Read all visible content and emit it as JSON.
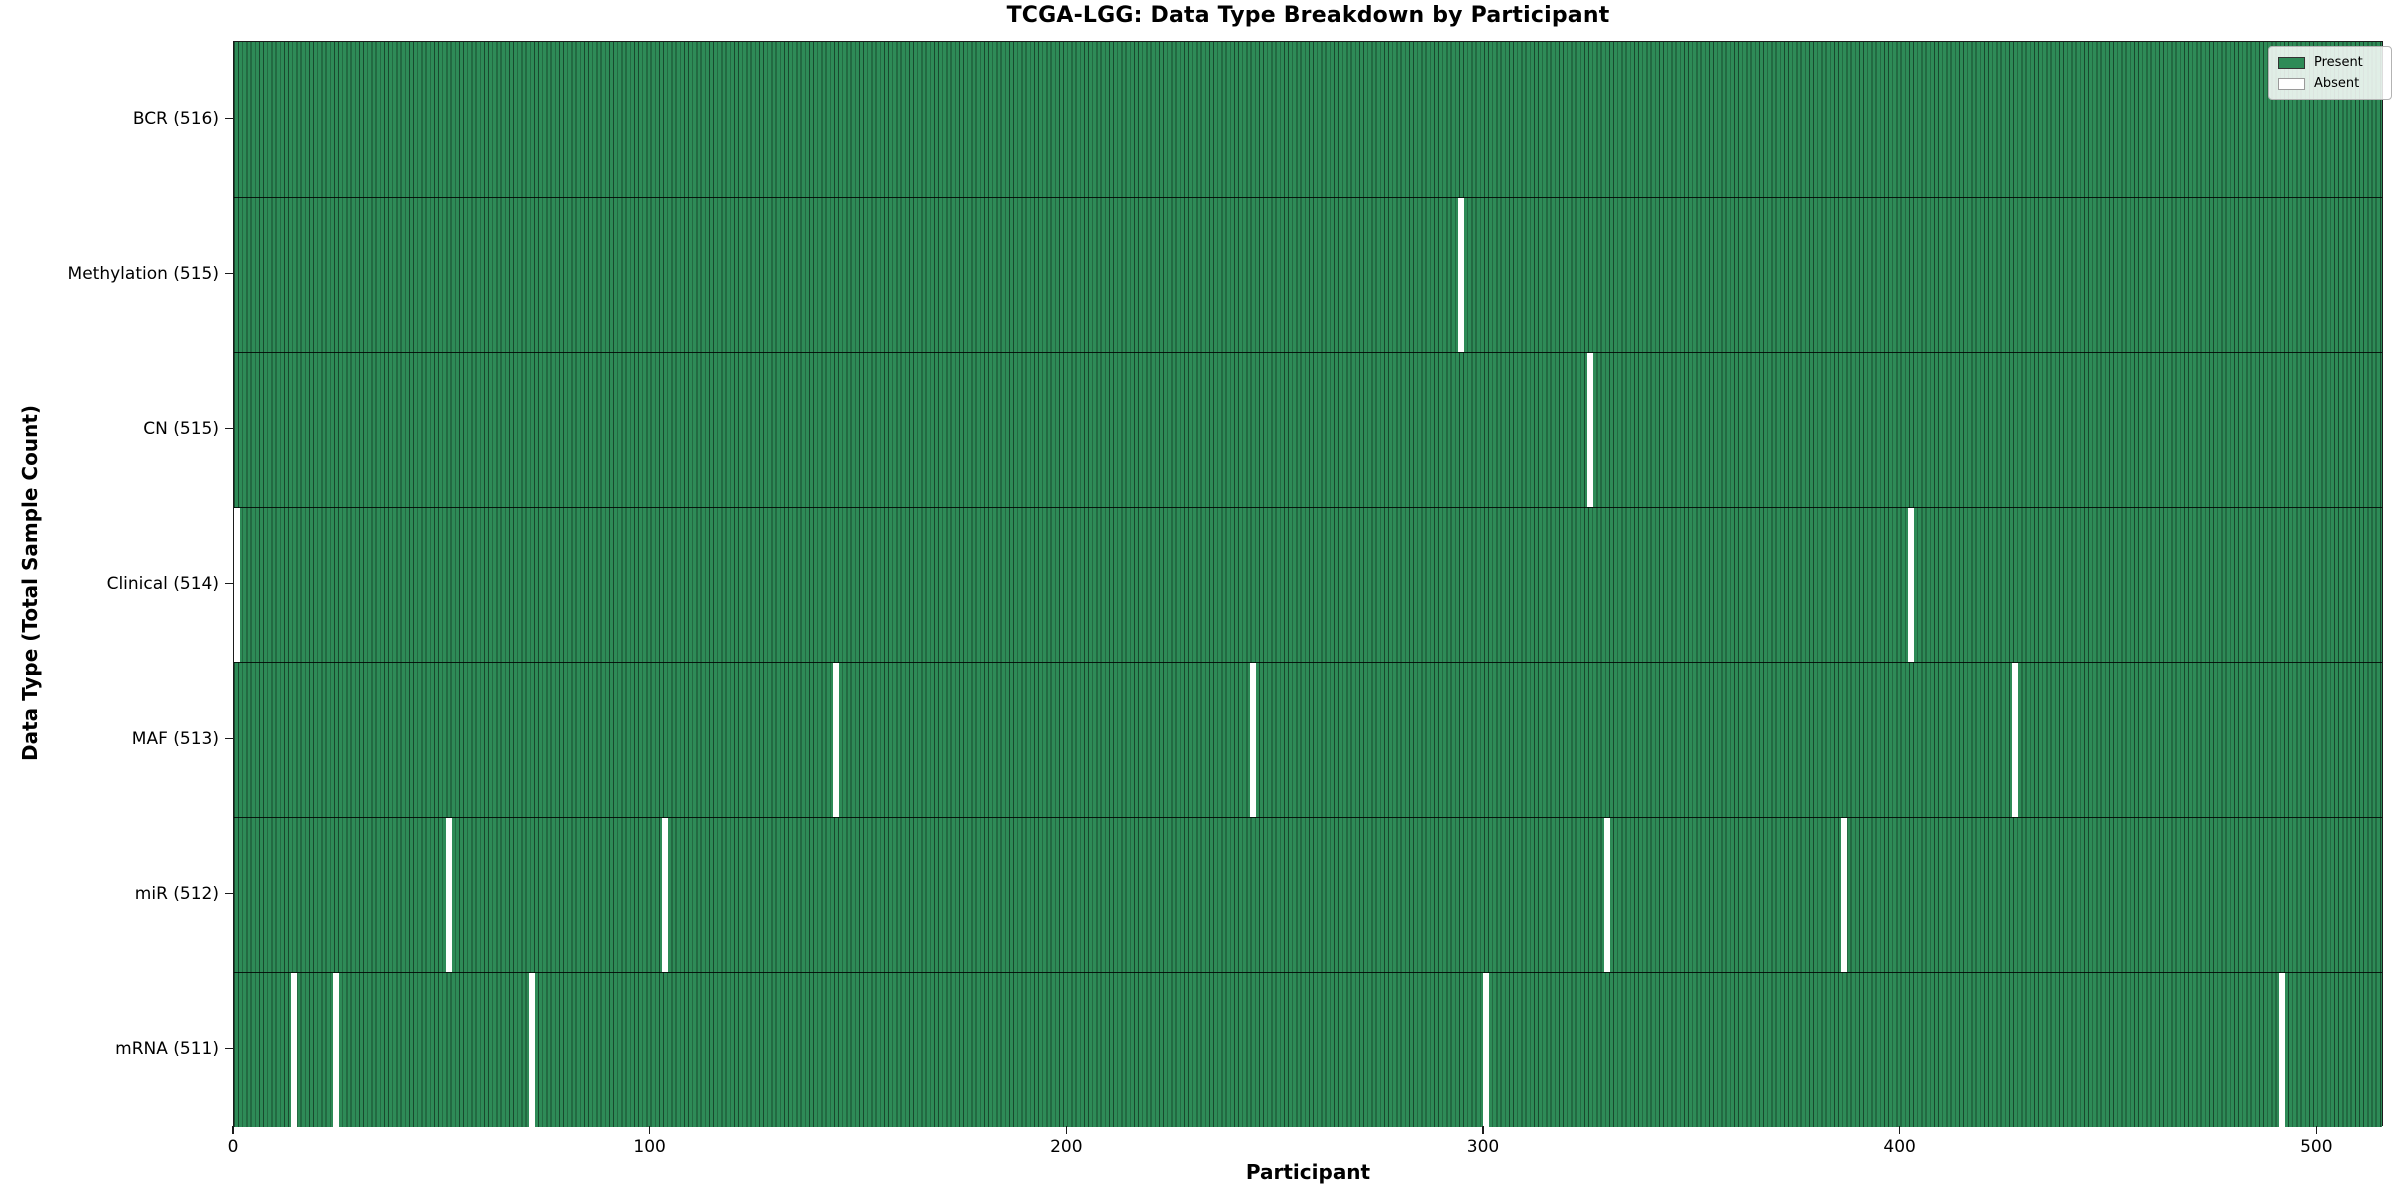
{
  "title": "TCGA-LGG: Data Type Breakdown by Participant",
  "legend": {
    "present_label": "Present",
    "absent_label": "Absent"
  },
  "colors": {
    "present": "#2e8b57",
    "absent": "#ffffff"
  },
  "chart_data": {
    "type": "heatmap",
    "title": "TCGA-LGG: Data Type Breakdown by Participant",
    "xlabel": "Participant",
    "ylabel": "Data Type (Total Sample Count)",
    "x_ticks": [
      0,
      100,
      200,
      300,
      400,
      500
    ],
    "xlim": [
      0,
      516
    ],
    "n_participants": 516,
    "grid": false,
    "legend_entries": [
      "Present",
      "Absent"
    ],
    "legend_position": "upper right",
    "rows": [
      {
        "name": "BCR",
        "label": "BCR (516)",
        "total": 516,
        "absent_participants": []
      },
      {
        "name": "Methylation",
        "label": "Methylation (515)",
        "total": 515,
        "absent_participants": [
          294
        ]
      },
      {
        "name": "CN",
        "label": "CN (515)",
        "total": 515,
        "absent_participants": [
          325
        ]
      },
      {
        "name": "Clinical",
        "label": "Clinical (514)",
        "total": 514,
        "absent_participants": [
          0,
          402
        ]
      },
      {
        "name": "MAF",
        "label": "MAF (513)",
        "total": 513,
        "absent_participants": [
          144,
          244,
          427
        ]
      },
      {
        "name": "miR",
        "label": "miR (512)",
        "total": 512,
        "absent_participants": [
          51,
          103,
          329,
          386
        ]
      },
      {
        "name": "mRNA",
        "label": "mRNA (511)",
        "total": 511,
        "absent_participants": [
          14,
          24,
          71,
          300,
          491
        ]
      }
    ]
  }
}
